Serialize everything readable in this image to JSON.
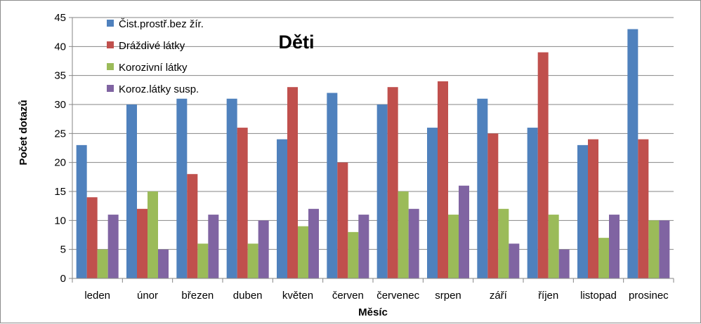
{
  "chart_data": {
    "type": "bar",
    "title": "Děti",
    "xlabel": "Měsíc",
    "ylabel": "Počet dotazů",
    "ylim": [
      0,
      45
    ],
    "ytick_step": 5,
    "grid": "horizontal",
    "legend_position": "top-left",
    "categories": [
      "leden",
      "únor",
      "březen",
      "duben",
      "květen",
      "červen",
      "červenec",
      "srpen",
      "září",
      "říjen",
      "listopad",
      "prosinec"
    ],
    "series": [
      {
        "name": "Čist.prostř.bez žír.",
        "color": "#4f81bd",
        "values": [
          23,
          30,
          31,
          31,
          24,
          32,
          30,
          26,
          31,
          26,
          23,
          43
        ]
      },
      {
        "name": "Dráždivé látky",
        "color": "#c0504d",
        "values": [
          14,
          12,
          18,
          26,
          33,
          20,
          33,
          34,
          25,
          39,
          24,
          24
        ]
      },
      {
        "name": "Korozivní látky",
        "color": "#9bbb59",
        "values": [
          5,
          15,
          6,
          6,
          9,
          8,
          15,
          11,
          12,
          11,
          7,
          10
        ]
      },
      {
        "name": "Koroz.látky susp.",
        "color": "#8064a2",
        "values": [
          11,
          5,
          11,
          10,
          12,
          11,
          12,
          16,
          6,
          5,
          11,
          10
        ]
      }
    ]
  }
}
